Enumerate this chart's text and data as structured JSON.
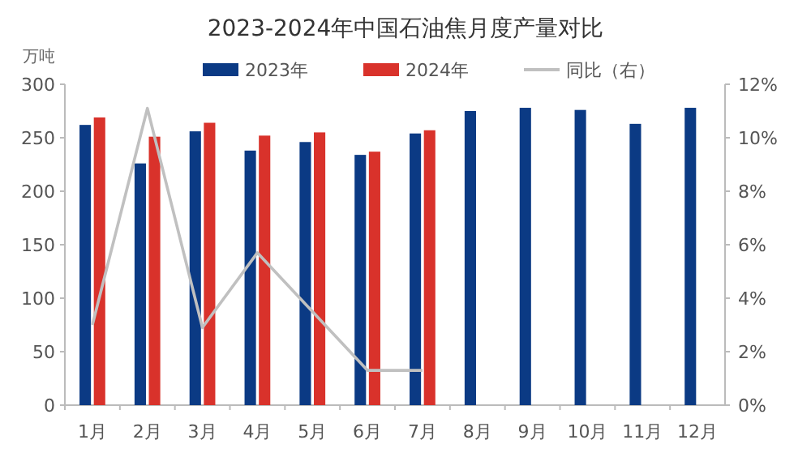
{
  "chart_data": {
    "type": "bar",
    "title": "2023-2024年中国石油焦月度产量对比",
    "ylabel": "万吨",
    "categories": [
      "1月",
      "2月",
      "3月",
      "4月",
      "5月",
      "6月",
      "7月",
      "8月",
      "9月",
      "10月",
      "11月",
      "12月"
    ],
    "series": [
      {
        "name": "2023年",
        "color": "#0b3a84",
        "values": [
          262,
          226,
          256,
          238,
          246,
          234,
          254,
          275,
          278,
          276,
          263,
          278
        ]
      },
      {
        "name": "2024年",
        "color": "#d9322b",
        "values": [
          269,
          251,
          264,
          252,
          255,
          237,
          257,
          null,
          null,
          null,
          null,
          null
        ]
      },
      {
        "name": "同比（右）",
        "type": "line",
        "axis": "y2",
        "color": "#c0c0c0",
        "values": [
          3.0,
          11.1,
          2.9,
          5.7,
          3.5,
          1.3,
          1.3,
          null,
          null,
          null,
          null,
          null
        ]
      }
    ],
    "ylim": [
      0,
      300
    ],
    "yticks": [
      0,
      50,
      100,
      150,
      200,
      250,
      300
    ],
    "y2lim": [
      0,
      12
    ],
    "y2ticks": [
      {
        "value": 0,
        "label": "0%"
      },
      {
        "value": 2,
        "label": "2%"
      },
      {
        "value": 4,
        "label": "4%"
      },
      {
        "value": 6,
        "label": "6%"
      },
      {
        "value": 8,
        "label": "8%"
      },
      {
        "value": 10,
        "label": "10%"
      },
      {
        "value": 12,
        "label": "12%"
      }
    ],
    "legend": "top",
    "grid": false
  }
}
